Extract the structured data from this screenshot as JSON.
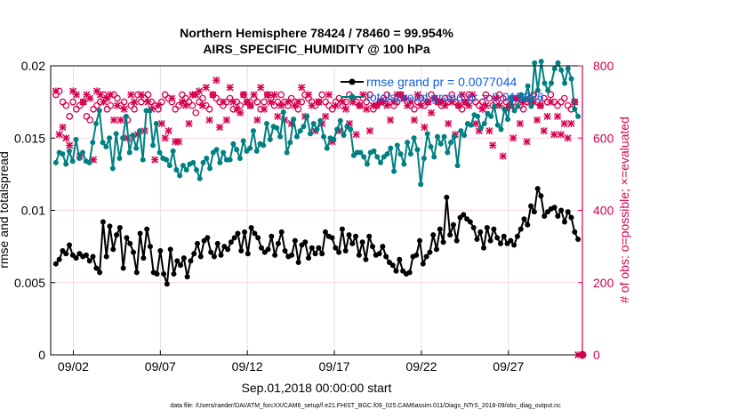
{
  "chart_data": {
    "type": "line",
    "title": "Northern Hemisphere 78424 / 78460 = 99.954%",
    "subtitle": "AIRS_SPECIFIC_HUMIDITY @ 100 hPa",
    "xlabel": "Sep.01,2018 00:00:00 start",
    "ylabel": "rmse and totalspread",
    "ylabel_right": "# of obs: o=possible; ×=evaluated",
    "footer": "data file: /Users/raeder/DAI/ATM_forcXX/CAM6_setup/f.e21.FHIST_BGC.f09_025.CAM6assim.011/Diags_NTrS_2018-09/obs_diag_output.nc",
    "x_range": [
      0.7,
      31.25
    ],
    "ylim": [
      0,
      0.02
    ],
    "ylim_right": [
      0,
      800
    ],
    "grid": true,
    "x_ticks": [
      {
        "x": 2,
        "label": "09/02"
      },
      {
        "x": 7,
        "label": "09/07"
      },
      {
        "x": 12,
        "label": "09/12"
      },
      {
        "x": 17,
        "label": "09/17"
      },
      {
        "x": 22,
        "label": "09/22"
      },
      {
        "x": 27,
        "label": "09/27"
      }
    ],
    "y_ticks": [
      {
        "v": 0,
        "label": "0"
      },
      {
        "v": 0.005,
        "label": "0.005"
      },
      {
        "v": 0.01,
        "label": "0.01"
      },
      {
        "v": 0.015,
        "label": "0.015"
      },
      {
        "v": 0.02,
        "label": "0.02"
      }
    ],
    "y_ticks_right": [
      {
        "v": 0,
        "label": "0"
      },
      {
        "v": 200,
        "label": "200"
      },
      {
        "v": 400,
        "label": "400"
      },
      {
        "v": 600,
        "label": "600"
      },
      {
        "v": 800,
        "label": "800"
      }
    ],
    "legend_position": "top-right",
    "series": [
      {
        "name": "rmse grand pr = 0.0077044",
        "axis": "left",
        "color": "#000000",
        "values": [
          0.0063,
          0.0066,
          0.0072,
          0.007,
          0.0076,
          0.0069,
          0.0067,
          0.007,
          0.0068,
          0.0069,
          0.0065,
          0.0068,
          0.006,
          0.0057,
          0.0092,
          0.0068,
          0.0089,
          0.0073,
          0.0083,
          0.0088,
          0.006,
          0.0081,
          0.0077,
          0.0071,
          0.0057,
          0.0084,
          0.0067,
          0.0087,
          0.0075,
          0.0057,
          0.0056,
          0.0072,
          0.0056,
          0.0049,
          0.0073,
          0.0056,
          0.0065,
          0.0062,
          0.0067,
          0.0054,
          0.0065,
          0.007,
          0.0077,
          0.0068,
          0.0079,
          0.0081,
          0.0071,
          0.0068,
          0.0077,
          0.0069,
          0.0075,
          0.0073,
          0.0078,
          0.0081,
          0.0084,
          0.0072,
          0.0085,
          0.007,
          0.0088,
          0.0084,
          0.0081,
          0.0074,
          0.0071,
          0.0073,
          0.0082,
          0.0069,
          0.0077,
          0.0085,
          0.0072,
          0.0068,
          0.0069,
          0.0079,
          0.0064,
          0.0076,
          0.0078,
          0.0067,
          0.0074,
          0.007,
          0.0074,
          0.007,
          0.0085,
          0.0082,
          0.0081,
          0.0074,
          0.0071,
          0.0087,
          0.0072,
          0.0083,
          0.0077,
          0.0082,
          0.0069,
          0.0078,
          0.0066,
          0.0082,
          0.0075,
          0.0069,
          0.007,
          0.0075,
          0.0068,
          0.0064,
          0.0062,
          0.0058,
          0.0066,
          0.0058,
          0.0056,
          0.0057,
          0.0068,
          0.0069,
          0.0079,
          0.0063,
          0.0068,
          0.0071,
          0.0083,
          0.0073,
          0.0087,
          0.0078,
          0.0109,
          0.0083,
          0.009,
          0.0079,
          0.0095,
          0.0097,
          0.0094,
          0.0092,
          0.0088,
          0.008,
          0.0085,
          0.0074,
          0.0088,
          0.0079,
          0.0087,
          0.0081,
          0.0077,
          0.0082,
          0.0077,
          0.0079,
          0.0076,
          0.0082,
          0.0087,
          0.0094,
          0.009,
          0.0103,
          0.0099,
          0.0115,
          0.011,
          0.0096,
          0.0099,
          0.0101,
          0.0102,
          0.0096,
          0.01,
          0.0092,
          0.0099,
          0.0095,
          0.0085,
          0.008
        ]
      },
      {
        "name": "totalspread grand pr = 0.015336",
        "axis": "left",
        "color": "#008080",
        "values": [
          0.0133,
          0.014,
          0.0139,
          0.0132,
          0.0141,
          0.0134,
          0.0149,
          0.0136,
          0.014,
          0.0134,
          0.0133,
          0.0147,
          0.016,
          0.0169,
          0.0147,
          0.0144,
          0.015,
          0.0129,
          0.0153,
          0.0136,
          0.015,
          0.0165,
          0.014,
          0.0152,
          0.0143,
          0.0155,
          0.0135,
          0.0169,
          0.0169,
          0.0145,
          0.016,
          0.014,
          0.0136,
          0.0135,
          0.0131,
          0.0141,
          0.0128,
          0.0124,
          0.0131,
          0.0128,
          0.0132,
          0.0133,
          0.0128,
          0.0122,
          0.0133,
          0.0136,
          0.0129,
          0.014,
          0.0142,
          0.0133,
          0.014,
          0.0135,
          0.0135,
          0.0146,
          0.0142,
          0.0136,
          0.0148,
          0.0141,
          0.0143,
          0.0155,
          0.0141,
          0.0146,
          0.0145,
          0.016,
          0.0149,
          0.0158,
          0.0157,
          0.0151,
          0.0168,
          0.014,
          0.0147,
          0.0163,
          0.0151,
          0.0155,
          0.0158,
          0.0165,
          0.0153,
          0.016,
          0.0156,
          0.0162,
          0.0151,
          0.0143,
          0.015,
          0.0149,
          0.0156,
          0.0162,
          0.0152,
          0.0158,
          0.0156,
          0.0138,
          0.014,
          0.014,
          0.0137,
          0.0132,
          0.014,
          0.0141,
          0.0137,
          0.0133,
          0.0137,
          0.0139,
          0.0143,
          0.0127,
          0.0145,
          0.0139,
          0.0132,
          0.0147,
          0.0139,
          0.015,
          0.0142,
          0.0118,
          0.0136,
          0.0153,
          0.0144,
          0.0137,
          0.0151,
          0.0146,
          0.0151,
          0.014,
          0.0147,
          0.0151,
          0.0131,
          0.0155,
          0.0152,
          0.016,
          0.0159,
          0.0166,
          0.0165,
          0.0157,
          0.016,
          0.0167,
          0.0165,
          0.0172,
          0.0159,
          0.0156,
          0.017,
          0.0163,
          0.0178,
          0.0169,
          0.0172,
          0.018,
          0.0177,
          0.0186,
          0.0172,
          0.0202,
          0.0183,
          0.0203,
          0.0188,
          0.0183,
          0.0188,
          0.0198,
          0.0202,
          0.0197,
          0.0188,
          0.0198,
          0.0191,
          0.017,
          0.0165
        ]
      }
    ],
    "obs_possible": [
      720,
      730,
      700,
      690,
      660,
      700,
      680,
      690,
      700,
      660,
      650,
      680,
      690,
      700,
      720,
      680,
      690,
      720,
      710,
      690,
      700,
      650,
      690,
      680,
      720,
      700,
      710,
      720,
      700,
      690,
      680,
      700,
      720,
      710,
      700,
      680,
      690,
      720,
      710,
      700,
      690,
      670,
      700,
      710,
      690,
      680,
      720,
      710,
      700,
      690,
      700,
      710,
      680,
      700,
      690,
      720,
      700,
      690,
      710,
      700,
      680,
      700,
      720,
      710,
      690,
      700,
      720,
      700,
      690,
      710,
      700,
      680,
      700,
      720,
      710,
      700,
      690,
      700,
      720,
      700,
      690,
      680,
      700,
      710,
      690,
      700,
      720,
      710,
      700,
      690,
      710,
      700,
      720,
      680,
      690,
      700,
      710,
      720,
      700,
      690,
      700,
      720,
      710,
      700,
      690,
      680,
      700,
      710,
      690,
      700,
      720,
      710,
      700,
      690,
      710,
      700,
      720,
      700,
      690,
      680,
      700,
      720,
      710,
      700,
      690,
      700,
      720,
      710,
      690,
      700,
      720,
      710,
      700,
      690,
      700,
      710,
      690,
      680,
      700,
      710,
      720,
      700,
      690,
      710,
      700,
      720,
      700,
      690,
      700,
      710,
      690,
      680,
      700,
      0
    ],
    "obs_evaluated": [
      730,
      610,
      630,
      600,
      580,
      730,
      720,
      550,
      700,
      720,
      710,
      540,
      730,
      720,
      700,
      710,
      720,
      650,
      690,
      650,
      680,
      600,
      720,
      700,
      610,
      720,
      620,
      700,
      680,
      540,
      690,
      640,
      600,
      620,
      710,
      590,
      590,
      700,
      690,
      640,
      720,
      720,
      730,
      690,
      740,
      650,
      720,
      760,
      630,
      700,
      650,
      740,
      700,
      680,
      670,
      720,
      700,
      690,
      720,
      650,
      740,
      680,
      720,
      700,
      720,
      660,
      690,
      650,
      700,
      640,
      690,
      700,
      740,
      660,
      720,
      690,
      620,
      700,
      640,
      660,
      720,
      590,
      690,
      620,
      700,
      680,
      640,
      700,
      610,
      690,
      720,
      680,
      620,
      690,
      690,
      700,
      700,
      690,
      650,
      700,
      720,
      720,
      710,
      690,
      700,
      650,
      720,
      690,
      630,
      700,
      670,
      710,
      700,
      700,
      690,
      640,
      700,
      610,
      690,
      720,
      700,
      690,
      720,
      640,
      620,
      680,
      690,
      620,
      580,
      710,
      690,
      550,
      680,
      690,
      600,
      710,
      640,
      700,
      590,
      700,
      700,
      650,
      690,
      620,
      660,
      700,
      610,
      660,
      610,
      640,
      600,
      640,
      700,
      0
    ]
  }
}
